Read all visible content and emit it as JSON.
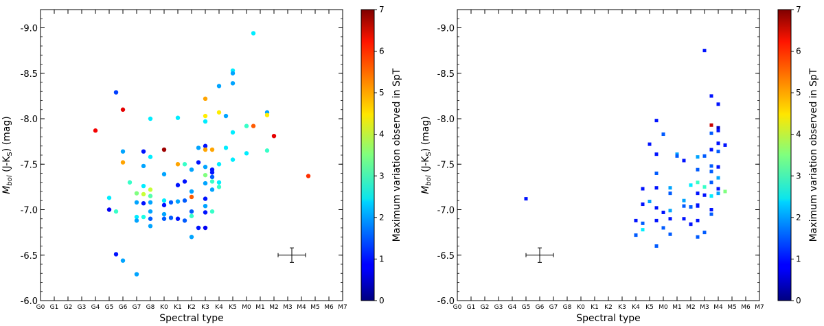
{
  "chart_data": [
    {
      "type": "scatter",
      "marker": "circle",
      "xlabel": "Spectral type",
      "ylabel_parts": {
        "main": "M",
        "sub": "bol",
        "rest": " (J-K",
        "sub2": "S",
        "tail": ") (mag)"
      },
      "ylim": [
        -6.0,
        -9.2
      ],
      "y_inverted": true,
      "xlim_categories": [
        "G0",
        "G1",
        "G2",
        "G3",
        "G4",
        "G5",
        "G6",
        "G7",
        "G8",
        "K0",
        "K1",
        "K2",
        "K3",
        "K4",
        "K5",
        "M0",
        "M1",
        "M2",
        "M3",
        "M4",
        "M5",
        "M6",
        "M7"
      ],
      "y_ticks": [
        "-9.0",
        "-8.5",
        "-8.0",
        "-7.5",
        "-7.0",
        "-6.5",
        "-6.0"
      ],
      "y_tick_values": [
        -9.0,
        -8.5,
        -8.0,
        -7.5,
        -7.0,
        -6.5,
        -6.0
      ],
      "colorbar": {
        "label": "Maximum variation observed in SpT",
        "min": 0,
        "max": 7,
        "ticks": [
          "0",
          "1",
          "2",
          "3",
          "4",
          "5",
          "6",
          "7"
        ]
      },
      "error_bar": {
        "x": 18.3,
        "y": -6.5,
        "xerr": 1.0,
        "yerr": 0.08
      },
      "points": [
        {
          "x": 4.0,
          "y": -7.87,
          "c": 6.2
        },
        {
          "x": 5.0,
          "y": -7.13,
          "c": 2.5
        },
        {
          "x": 5.0,
          "y": -7.0,
          "c": 0.8
        },
        {
          "x": 5.5,
          "y": -6.98,
          "c": 3.0
        },
        {
          "x": 5.5,
          "y": -8.29,
          "c": 1.3
        },
        {
          "x": 5.5,
          "y": -6.51,
          "c": 1.0
        },
        {
          "x": 6.0,
          "y": -8.1,
          "c": 6.3
        },
        {
          "x": 6.0,
          "y": -7.64,
          "c": 2.0
        },
        {
          "x": 6.0,
          "y": -7.52,
          "c": 5.0
        },
        {
          "x": 6.0,
          "y": -6.44,
          "c": 2.0
        },
        {
          "x": 6.5,
          "y": -7.3,
          "c": 3.0
        },
        {
          "x": 7.0,
          "y": -7.18,
          "c": 3.5
        },
        {
          "x": 7.0,
          "y": -7.08,
          "c": 2.0
        },
        {
          "x": 7.0,
          "y": -6.92,
          "c": 2.5
        },
        {
          "x": 7.0,
          "y": -6.88,
          "c": 2.0
        },
        {
          "x": 7.0,
          "y": -6.29,
          "c": 2.0
        },
        {
          "x": 7.5,
          "y": -7.64,
          "c": 1.0
        },
        {
          "x": 7.5,
          "y": -7.48,
          "c": 2.0
        },
        {
          "x": 7.5,
          "y": -7.26,
          "c": 2.5
        },
        {
          "x": 7.5,
          "y": -7.17,
          "c": 4.0
        },
        {
          "x": 7.5,
          "y": -7.07,
          "c": 1.0
        },
        {
          "x": 7.5,
          "y": -6.92,
          "c": 2.8
        },
        {
          "x": 8.0,
          "y": -8.0,
          "c": 2.5
        },
        {
          "x": 8.0,
          "y": -7.58,
          "c": 2.5
        },
        {
          "x": 8.0,
          "y": -7.22,
          "c": 4.0
        },
        {
          "x": 8.0,
          "y": -7.15,
          "c": 3.2
        },
        {
          "x": 8.0,
          "y": -7.08,
          "c": 2.0
        },
        {
          "x": 8.0,
          "y": -6.98,
          "c": 2.0
        },
        {
          "x": 8.0,
          "y": -6.9,
          "c": 1.5
        },
        {
          "x": 8.0,
          "y": -6.82,
          "c": 2.0
        },
        {
          "x": 9.0,
          "y": -7.66,
          "c": 6.8
        },
        {
          "x": 9.0,
          "y": -7.39,
          "c": 2.0
        },
        {
          "x": 9.0,
          "y": -7.1,
          "c": 2.5
        },
        {
          "x": 9.0,
          "y": -7.05,
          "c": 1.0
        },
        {
          "x": 9.0,
          "y": -6.95,
          "c": 2.0
        },
        {
          "x": 9.0,
          "y": -6.9,
          "c": 1.5
        },
        {
          "x": 9.5,
          "y": -7.08,
          "c": 1.5
        },
        {
          "x": 9.5,
          "y": -6.91,
          "c": 1.5
        },
        {
          "x": 10.0,
          "y": -8.01,
          "c": 2.5
        },
        {
          "x": 10.0,
          "y": -7.5,
          "c": 5.0
        },
        {
          "x": 10.0,
          "y": -7.27,
          "c": 1.0
        },
        {
          "x": 10.0,
          "y": -7.09,
          "c": 2.0
        },
        {
          "x": 10.0,
          "y": -6.9,
          "c": 1.0
        },
        {
          "x": 10.5,
          "y": -7.5,
          "c": 3.0
        },
        {
          "x": 10.5,
          "y": -7.31,
          "c": 1.0
        },
        {
          "x": 10.5,
          "y": -7.1,
          "c": 1.5
        },
        {
          "x": 10.5,
          "y": -6.88,
          "c": 1.5
        },
        {
          "x": 11.0,
          "y": -7.44,
          "c": 2.0
        },
        {
          "x": 11.0,
          "y": -7.2,
          "c": 2.0
        },
        {
          "x": 11.0,
          "y": -7.14,
          "c": 5.5
        },
        {
          "x": 11.0,
          "y": -6.98,
          "c": 1.5
        },
        {
          "x": 11.0,
          "y": -6.93,
          "c": 3.0
        },
        {
          "x": 11.0,
          "y": -6.7,
          "c": 2.0
        },
        {
          "x": 11.5,
          "y": -7.68,
          "c": 2.0
        },
        {
          "x": 11.5,
          "y": -7.52,
          "c": 1.0
        },
        {
          "x": 11.5,
          "y": -6.8,
          "c": 1.0
        },
        {
          "x": 12.0,
          "y": -7.97,
          "c": 2.5
        },
        {
          "x": 12.0,
          "y": -7.7,
          "c": 1.0
        },
        {
          "x": 12.0,
          "y": -7.66,
          "c": 5.0
        },
        {
          "x": 12.0,
          "y": -7.47,
          "c": 2.0
        },
        {
          "x": 12.0,
          "y": -7.38,
          "c": 3.5
        },
        {
          "x": 12.0,
          "y": -7.29,
          "c": 2.0
        },
        {
          "x": 12.0,
          "y": -7.12,
          "c": 1.0
        },
        {
          "x": 12.0,
          "y": -7.04,
          "c": 2.0
        },
        {
          "x": 12.0,
          "y": -6.97,
          "c": 1.0
        },
        {
          "x": 12.0,
          "y": -6.8,
          "c": 0.8
        },
        {
          "x": 12.0,
          "y": -8.03,
          "c": 4.5
        },
        {
          "x": 12.0,
          "y": -8.22,
          "c": 5.0
        },
        {
          "x": 12.5,
          "y": -7.66,
          "c": 5.0
        },
        {
          "x": 12.5,
          "y": -7.44,
          "c": 1.0
        },
        {
          "x": 12.5,
          "y": -7.41,
          "c": 1.0
        },
        {
          "x": 12.5,
          "y": -7.36,
          "c": 1.5
        },
        {
          "x": 12.5,
          "y": -7.31,
          "c": 3.0
        },
        {
          "x": 12.5,
          "y": -7.22,
          "c": 2.0
        },
        {
          "x": 12.5,
          "y": -6.98,
          "c": 3.0
        },
        {
          "x": 13.0,
          "y": -8.36,
          "c": 2.0
        },
        {
          "x": 13.0,
          "y": -8.07,
          "c": 4.5
        },
        {
          "x": 13.0,
          "y": -7.5,
          "c": 2.5
        },
        {
          "x": 13.0,
          "y": -7.3,
          "c": 2.5
        },
        {
          "x": 13.0,
          "y": -7.25,
          "c": 3.0
        },
        {
          "x": 13.5,
          "y": -8.03,
          "c": 2.0
        },
        {
          "x": 13.5,
          "y": -7.68,
          "c": 2.5
        },
        {
          "x": 14.0,
          "y": -8.53,
          "c": 2.5
        },
        {
          "x": 14.0,
          "y": -8.5,
          "c": 2.0
        },
        {
          "x": 14.0,
          "y": -8.39,
          "c": 2.0
        },
        {
          "x": 14.0,
          "y": -7.85,
          "c": 2.5
        },
        {
          "x": 14.0,
          "y": -7.55,
          "c": 2.5
        },
        {
          "x": 15.0,
          "y": -7.92,
          "c": 3.0
        },
        {
          "x": 15.0,
          "y": -7.62,
          "c": 2.5
        },
        {
          "x": 15.5,
          "y": -8.94,
          "c": 2.5
        },
        {
          "x": 15.5,
          "y": -7.92,
          "c": 5.5
        },
        {
          "x": 16.5,
          "y": -8.07,
          "c": 2.0
        },
        {
          "x": 16.5,
          "y": -8.04,
          "c": 4.5
        },
        {
          "x": 16.5,
          "y": -7.65,
          "c": 3.0
        },
        {
          "x": 17.0,
          "y": -7.81,
          "c": 6.3
        },
        {
          "x": 19.5,
          "y": -7.37,
          "c": 5.8
        }
      ]
    },
    {
      "type": "scatter",
      "marker": "square",
      "xlabel": "Spectral type",
      "ylabel_parts": {
        "main": "M",
        "sub": "bol",
        "rest": " (J-K",
        "sub2": "S",
        "tail": ") (mag)"
      },
      "ylim": [
        -6.0,
        -9.2
      ],
      "y_inverted": true,
      "xlim_categories": [
        "G0",
        "G1",
        "G2",
        "G3",
        "G4",
        "G5",
        "G6",
        "G7",
        "G8",
        "K0",
        "K1",
        "K2",
        "K3",
        "K4",
        "K5",
        "M0",
        "M1",
        "M2",
        "M3",
        "M4",
        "M5",
        "M6",
        "M7"
      ],
      "y_ticks": [
        "-9.0",
        "-8.5",
        "-8.0",
        "-7.5",
        "-7.0",
        "-6.5",
        "-6.0"
      ],
      "y_tick_values": [
        -9.0,
        -8.5,
        -8.0,
        -7.5,
        -7.0,
        -6.5,
        -6.0
      ],
      "colorbar": {
        "label": "Maximum variation observed in SpT",
        "min": 0,
        "max": 7,
        "ticks": [
          "0",
          "1",
          "2",
          "3",
          "4",
          "5",
          "6",
          "7"
        ]
      },
      "error_bar": {
        "x": 6.0,
        "y": -6.5,
        "xerr": 1.0,
        "yerr": 0.08
      },
      "points": [
        {
          "x": 5.0,
          "y": -7.12,
          "c": 1.0
        },
        {
          "x": 13.0,
          "y": -6.88,
          "c": 1.0
        },
        {
          "x": 13.0,
          "y": -6.72,
          "c": 1.5
        },
        {
          "x": 13.5,
          "y": -7.23,
          "c": 1.0
        },
        {
          "x": 13.5,
          "y": -7.06,
          "c": 1.0
        },
        {
          "x": 13.5,
          "y": -6.85,
          "c": 1.5
        },
        {
          "x": 13.5,
          "y": -6.78,
          "c": 2.5
        },
        {
          "x": 14.0,
          "y": -7.72,
          "c": 1.0
        },
        {
          "x": 14.0,
          "y": -7.09,
          "c": 2.0
        },
        {
          "x": 14.5,
          "y": -7.98,
          "c": 1.0
        },
        {
          "x": 14.5,
          "y": -7.61,
          "c": 1.0
        },
        {
          "x": 14.5,
          "y": -7.4,
          "c": 1.5
        },
        {
          "x": 14.5,
          "y": -7.24,
          "c": 1.0
        },
        {
          "x": 14.5,
          "y": -7.02,
          "c": 1.0
        },
        {
          "x": 14.5,
          "y": -6.88,
          "c": 1.0
        },
        {
          "x": 14.5,
          "y": -6.6,
          "c": 1.5
        },
        {
          "x": 15.0,
          "y": -7.83,
          "c": 1.5
        },
        {
          "x": 15.0,
          "y": -6.97,
          "c": 1.0
        },
        {
          "x": 15.0,
          "y": -6.8,
          "c": 1.5
        },
        {
          "x": 15.5,
          "y": -7.24,
          "c": 2.0
        },
        {
          "x": 15.5,
          "y": -7.18,
          "c": 1.5
        },
        {
          "x": 15.5,
          "y": -6.99,
          "c": 2.0
        },
        {
          "x": 15.5,
          "y": -6.9,
          "c": 1.0
        },
        {
          "x": 15.5,
          "y": -6.73,
          "c": 1.5
        },
        {
          "x": 16.0,
          "y": -7.61,
          "c": 2.0
        },
        {
          "x": 16.0,
          "y": -7.59,
          "c": 1.5
        },
        {
          "x": 16.5,
          "y": -7.54,
          "c": 1.0
        },
        {
          "x": 16.5,
          "y": -7.1,
          "c": 2.0
        },
        {
          "x": 16.5,
          "y": -7.04,
          "c": 1.5
        },
        {
          "x": 16.5,
          "y": -6.9,
          "c": 1.0
        },
        {
          "x": 17.0,
          "y": -7.27,
          "c": 2.5
        },
        {
          "x": 17.0,
          "y": -7.03,
          "c": 1.5
        },
        {
          "x": 17.0,
          "y": -6.84,
          "c": 1.0
        },
        {
          "x": 17.5,
          "y": -7.58,
          "c": 2.0
        },
        {
          "x": 17.5,
          "y": -7.44,
          "c": 1.5
        },
        {
          "x": 17.5,
          "y": -7.3,
          "c": 3.0
        },
        {
          "x": 17.5,
          "y": -7.18,
          "c": 1.0
        },
        {
          "x": 17.5,
          "y": -7.05,
          "c": 1.0
        },
        {
          "x": 17.5,
          "y": -7.04,
          "c": 1.0
        },
        {
          "x": 17.5,
          "y": -6.88,
          "c": 1.0
        },
        {
          "x": 17.5,
          "y": -6.7,
          "c": 1.5
        },
        {
          "x": 18.0,
          "y": -8.75,
          "c": 1.0
        },
        {
          "x": 18.0,
          "y": -7.59,
          "c": 1.5
        },
        {
          "x": 18.0,
          "y": -7.25,
          "c": 3.0
        },
        {
          "x": 18.0,
          "y": -7.16,
          "c": 1.0
        },
        {
          "x": 18.0,
          "y": -6.75,
          "c": 1.5
        },
        {
          "x": 18.5,
          "y": -8.25,
          "c": 1.0
        },
        {
          "x": 18.5,
          "y": -7.93,
          "c": 6.5
        },
        {
          "x": 18.5,
          "y": -7.84,
          "c": 1.5
        },
        {
          "x": 18.5,
          "y": -7.66,
          "c": 1.0
        },
        {
          "x": 18.5,
          "y": -7.48,
          "c": 1.5
        },
        {
          "x": 18.5,
          "y": -7.42,
          "c": 1.5
        },
        {
          "x": 18.5,
          "y": -7.3,
          "c": 1.5
        },
        {
          "x": 18.5,
          "y": -7.15,
          "c": 2.5
        },
        {
          "x": 18.5,
          "y": -7.0,
          "c": 1.0
        },
        {
          "x": 18.5,
          "y": -6.95,
          "c": 1.5
        },
        {
          "x": 19.0,
          "y": -8.16,
          "c": 1.0
        },
        {
          "x": 19.0,
          "y": -7.9,
          "c": 0.5
        },
        {
          "x": 19.0,
          "y": -7.87,
          "c": 1.0
        },
        {
          "x": 19.0,
          "y": -7.73,
          "c": 1.0
        },
        {
          "x": 19.0,
          "y": -7.64,
          "c": 1.5
        },
        {
          "x": 19.0,
          "y": -7.47,
          "c": 1.0
        },
        {
          "x": 19.0,
          "y": -7.35,
          "c": 2.0
        },
        {
          "x": 19.0,
          "y": -7.23,
          "c": 1.0
        },
        {
          "x": 19.0,
          "y": -7.18,
          "c": 2.0
        },
        {
          "x": 19.5,
          "y": -7.71,
          "c": 1.0
        },
        {
          "x": 19.5,
          "y": -7.2,
          "c": 3.5
        }
      ]
    }
  ]
}
